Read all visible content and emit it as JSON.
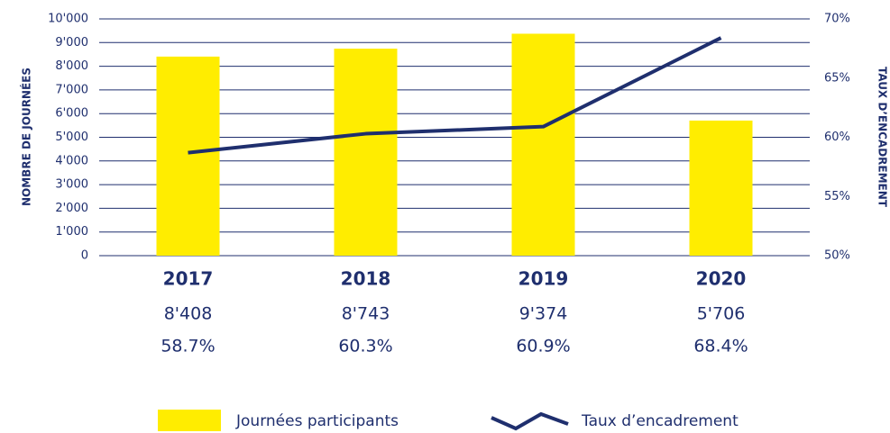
{
  "chart_data": {
    "type": "bar_line",
    "y_label": "NOMBRE DE JOURNÉES",
    "y2_label": "TAUX D’ENCADREMENT",
    "categories": [
      "2017",
      "2018",
      "2019",
      "2020"
    ],
    "series": [
      {
        "name": "Journées participants",
        "type": "bar",
        "color": "#ffed00",
        "values": [
          8408,
          8743,
          9374,
          5706
        ],
        "value_labels": [
          "8'408",
          "8'743",
          "9'374",
          "5'706"
        ]
      },
      {
        "name": "Taux d’encadrement",
        "type": "line",
        "axis": "y2",
        "color": "#1f2f6e",
        "values": [
          58.7,
          60.3,
          60.9,
          68.4
        ],
        "value_labels": [
          "58.7%",
          "60.3%",
          "60.9%",
          "68.4%"
        ]
      }
    ],
    "ylim": [
      0,
      10000
    ],
    "yticks": [
      0,
      {
        "value": 1000,
        "label": "1'000"
      },
      {
        "value": 2000,
        "label": "2'000"
      },
      {
        "value": 3000,
        "label": "3'000"
      },
      {
        "value": 4000,
        "label": "4'000"
      },
      {
        "value": 5000,
        "label": "5'000"
      },
      {
        "value": 6000,
        "label": "6'000"
      },
      {
        "value": 7000,
        "label": "7'000"
      },
      {
        "value": 8000,
        "label": "8'000"
      },
      {
        "value": 9000,
        "label": "9'000"
      },
      {
        "value": 10000,
        "label": "10'000"
      }
    ],
    "y2lim": [
      50,
      70
    ],
    "y2ticks": [
      {
        "value": 50,
        "label": "50%"
      },
      {
        "value": 55,
        "label": "55%"
      },
      {
        "value": 60,
        "label": "60%"
      },
      {
        "value": 65,
        "label": "65%"
      },
      {
        "value": 70,
        "label": "70%"
      }
    ],
    "grid": true
  }
}
